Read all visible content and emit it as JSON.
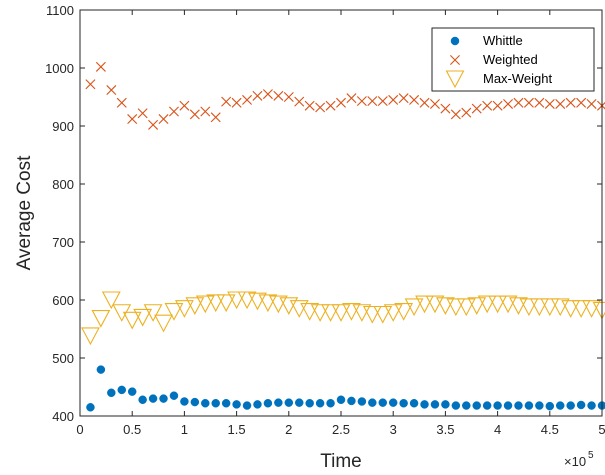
{
  "chart_data": {
    "type": "scatter",
    "xlabel": "Time",
    "ylabel": "Average Cost",
    "x_exponent": {
      "base": "×10",
      "power": "5"
    },
    "xlim": [
      0,
      5
    ],
    "ylim": [
      400,
      1100
    ],
    "xticks": [
      0,
      0.5,
      1,
      1.5,
      2,
      2.5,
      3,
      3.5,
      4,
      4.5,
      5
    ],
    "xtick_labels": [
      "0",
      "0.5",
      "1",
      "1.5",
      "2",
      "2.5",
      "3",
      "3.5",
      "4",
      "4.5",
      "5"
    ],
    "yticks": [
      400,
      500,
      600,
      700,
      800,
      900,
      1000,
      1100
    ],
    "ytick_labels": [
      "400",
      "500",
      "600",
      "700",
      "800",
      "900",
      "1000",
      "1100"
    ],
    "grid": false,
    "legend_position": "top-right",
    "x": [
      0.1,
      0.2,
      0.3,
      0.4,
      0.5,
      0.6,
      0.7,
      0.8,
      0.9,
      1.0,
      1.1,
      1.2,
      1.3,
      1.4,
      1.5,
      1.6,
      1.7,
      1.8,
      1.9,
      2.0,
      2.1,
      2.2,
      2.3,
      2.4,
      2.5,
      2.6,
      2.7,
      2.8,
      2.9,
      3.0,
      3.1,
      3.2,
      3.3,
      3.4,
      3.5,
      3.6,
      3.7,
      3.8,
      3.9,
      4.0,
      4.1,
      4.2,
      4.3,
      4.4,
      4.5,
      4.6,
      4.7,
      4.8,
      4.9,
      5.0
    ],
    "series": [
      {
        "name": "Whittle",
        "marker": "circle",
        "color": "#0072BD",
        "values": [
          415,
          480,
          440,
          445,
          442,
          428,
          430,
          430,
          435,
          425,
          424,
          422,
          422,
          422,
          420,
          418,
          420,
          422,
          423,
          423,
          423,
          422,
          422,
          422,
          428,
          426,
          425,
          423,
          423,
          423,
          422,
          422,
          420,
          420,
          420,
          418,
          418,
          418,
          418,
          418,
          418,
          418,
          418,
          418,
          417,
          418,
          418,
          419,
          418,
          418
        ]
      },
      {
        "name": "Weighted",
        "marker": "cross",
        "color": "#D95319",
        "values": [
          972,
          1002,
          962,
          940,
          912,
          922,
          902,
          912,
          925,
          935,
          920,
          925,
          915,
          942,
          940,
          945,
          952,
          955,
          952,
          950,
          942,
          935,
          932,
          935,
          940,
          948,
          943,
          943,
          943,
          945,
          948,
          945,
          940,
          938,
          930,
          920,
          923,
          930,
          935,
          935,
          938,
          940,
          940,
          940,
          938,
          938,
          940,
          940,
          938,
          935
        ]
      },
      {
        "name": "Max-Weight",
        "marker": "triangle-down",
        "color": "#EDB120",
        "values": [
          538,
          568,
          600,
          578,
          565,
          570,
          578,
          560,
          580,
          585,
          590,
          593,
          595,
          595,
          600,
          600,
          598,
          595,
          593,
          590,
          585,
          580,
          578,
          578,
          578,
          580,
          578,
          575,
          575,
          578,
          580,
          588,
          593,
          593,
          590,
          588,
          588,
          590,
          593,
          593,
          593,
          590,
          588,
          588,
          588,
          588,
          585,
          585,
          585,
          582
        ]
      }
    ]
  }
}
